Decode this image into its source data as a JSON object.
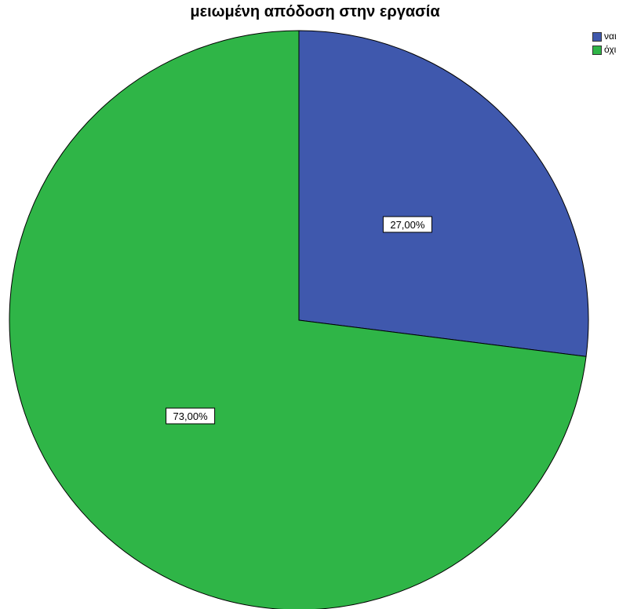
{
  "chart_data": {
    "type": "pie",
    "title": "μειωμένη απόδοση στην εργασία",
    "slices": [
      {
        "name": "ναι",
        "value": 27.0,
        "label": "27,00%",
        "color": "#3f58ad"
      },
      {
        "name": "όχι",
        "value": 73.0,
        "label": "73,00%",
        "color": "#2fb547"
      }
    ],
    "legend_position": "top-right",
    "start_angle_deg": 0,
    "direction": "clockwise"
  }
}
